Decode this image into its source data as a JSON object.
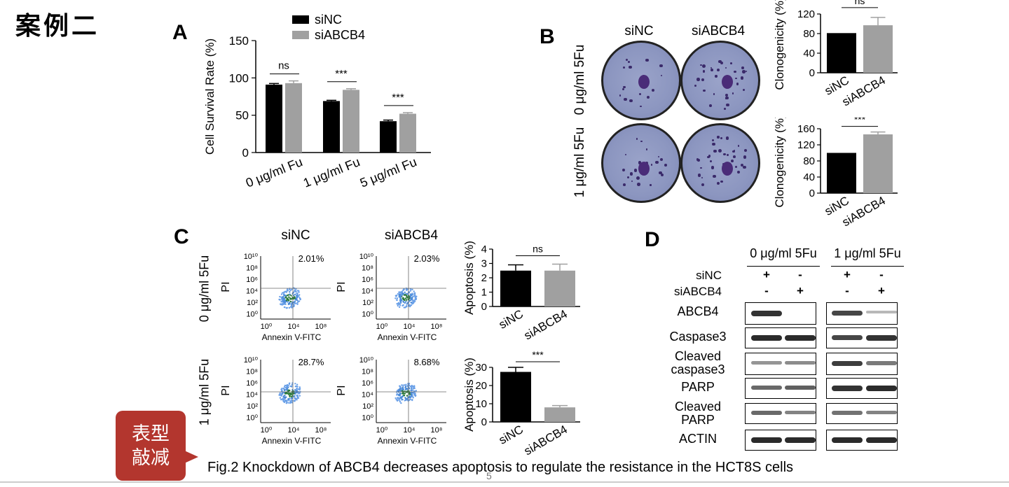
{
  "corner_title": "案例二",
  "bubble": [
    "表型",
    "敲减"
  ],
  "caption": "Fig.2 Knockdown of ABCB4 decreases apoptosis to regulate the resistance in the HCT8S cells",
  "page_number": "5",
  "panels": {
    "A": "A",
    "B": "B",
    "C": "C",
    "D": "D"
  },
  "colors": {
    "siNC": "#000000",
    "siABCB4": "#a0a0a0"
  },
  "panel_b": {
    "col_labels": [
      "siNC",
      "siABCB4"
    ],
    "row_labels": [
      "0 μg/ml 5Fu",
      "1 μg/ml 5Fu"
    ]
  },
  "panel_c": {
    "col_labels": [
      "siNC",
      "siABCB4"
    ],
    "row_labels": [
      "0 μg/ml 5Fu",
      "1 μg/ml 5Fu"
    ],
    "flow_xlabel": "Annexin V-FITC",
    "flow_ylabel": "PI",
    "flow_xticks": [
      "10⁰",
      "10⁴",
      "10⁸"
    ],
    "flow_yticks": [
      "10¹⁰",
      "10⁸",
      "10⁶",
      "10⁴",
      "10²",
      "10⁰"
    ],
    "flow_percentages": [
      [
        "2.01%",
        "2.03%"
      ],
      [
        "28.7%",
        "8.68%"
      ]
    ]
  },
  "panel_d": {
    "conditions": [
      "0 μg/ml 5Fu",
      "1 μg/ml 5Fu"
    ],
    "treatment_rows": [
      {
        "label": "siNC",
        "signs": [
          "+",
          "-",
          "+",
          "-"
        ]
      },
      {
        "label": "siABCB4",
        "signs": [
          "-",
          "+",
          "-",
          "+"
        ]
      }
    ],
    "blot_rows": [
      {
        "label": "ABCB4",
        "band_intensity": [
          0.9,
          0.0,
          0.8,
          0.15
        ]
      },
      {
        "label": "Caspase3",
        "band_intensity": [
          0.95,
          0.95,
          0.8,
          0.9
        ]
      },
      {
        "label": "Cleaved\ncaspase3",
        "band_intensity": [
          0.35,
          0.4,
          0.85,
          0.5
        ]
      },
      {
        "label": "PARP",
        "band_intensity": [
          0.6,
          0.65,
          0.9,
          0.95
        ]
      },
      {
        "label": "Cleaved\nPARP",
        "band_intensity": [
          0.6,
          0.45,
          0.55,
          0.45
        ]
      },
      {
        "label": "ACTIN",
        "band_intensity": [
          0.95,
          0.95,
          0.95,
          0.95
        ]
      }
    ]
  },
  "chart_data": [
    {
      "id": "A",
      "type": "bar",
      "ylabel": "Cell Survival Rate (%)",
      "ylim": [
        0,
        150
      ],
      "yticks": [
        0,
        50,
        100,
        150
      ],
      "categories": [
        "0 μg/ml Fu",
        "1 μg/ml Fu",
        "5 μg/ml Fu"
      ],
      "series": [
        {
          "name": "siNC",
          "values": [
            91,
            69,
            42
          ],
          "errors": [
            1.5,
            1,
            1.5
          ]
        },
        {
          "name": "siABCB4",
          "values": [
            93,
            84,
            52
          ],
          "errors": [
            3,
            1.5,
            1.5
          ]
        }
      ],
      "significance": [
        "ns",
        "***",
        "***"
      ],
      "legend": "top"
    },
    {
      "id": "B-top",
      "type": "bar",
      "ylabel": "Clonogenicity (%)",
      "ylim": [
        0,
        120
      ],
      "yticks": [
        0,
        40,
        80,
        120
      ],
      "categories": [
        "siNC",
        "siABCB4"
      ],
      "values": [
        81,
        97
      ],
      "errors": [
        0,
        16
      ],
      "significance": "ns"
    },
    {
      "id": "B-bottom",
      "type": "bar",
      "ylabel": "Clonogenicity (%)",
      "ylim": [
        0,
        160
      ],
      "yticks": [
        0,
        40,
        80,
        120,
        160
      ],
      "categories": [
        "siNC",
        "siABCB4"
      ],
      "values": [
        100,
        146
      ],
      "errors": [
        0,
        6
      ],
      "significance": "***"
    },
    {
      "id": "C-top",
      "type": "bar",
      "ylabel": "Apoptosis (%)",
      "ylim": [
        0,
        4
      ],
      "yticks": [
        0,
        1,
        2,
        3,
        4
      ],
      "categories": [
        "siNC",
        "siABCB4"
      ],
      "values": [
        2.5,
        2.5
      ],
      "errors": [
        0.4,
        0.45
      ],
      "significance": "ns"
    },
    {
      "id": "C-bottom",
      "type": "bar",
      "ylabel": "Apoptosis (%)",
      "ylim": [
        0,
        30
      ],
      "yticks": [
        0,
        10,
        20,
        30
      ],
      "categories": [
        "siNC",
        "siABCB4"
      ],
      "values": [
        27.5,
        8
      ],
      "errors": [
        2.5,
        1
      ],
      "significance": "***"
    }
  ]
}
